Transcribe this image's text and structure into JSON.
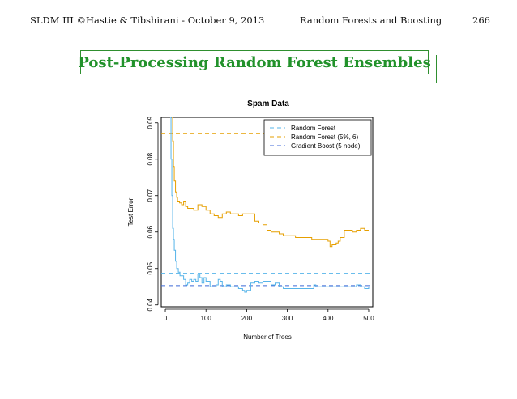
{
  "header": {
    "left": "SLDM III ©Hastie & Tibshirani - October 9, 2013",
    "center": "Random Forests and Boosting",
    "page": "266"
  },
  "slide": {
    "title": "Post-Processing Random Forest Ensembles"
  },
  "chart_data": {
    "type": "line",
    "title": "Spam Data",
    "xlabel": "Number of Trees",
    "ylabel": "Test Error",
    "xlim": [
      -10,
      510
    ],
    "ylim": [
      0.0395,
      0.0915
    ],
    "xticks": [
      0,
      100,
      200,
      300,
      400,
      500
    ],
    "xtick_labels": [
      "0",
      "100",
      "200",
      "300",
      "400",
      "500"
    ],
    "yticks": [
      0.04,
      0.05,
      0.06,
      0.07,
      0.08,
      0.09
    ],
    "ytick_labels": [
      "0.04",
      "0.05",
      "0.06",
      "0.07",
      "0.08",
      "0.09"
    ],
    "grid": false,
    "legend_position": "top-right",
    "legend": [
      {
        "label": "Random Forest",
        "color": "#56b4e9"
      },
      {
        "label": "Random Forest (5%, 6)",
        "color": "#e69f00"
      },
      {
        "label": "Gradient Boost (5 node)",
        "color": "#3f6ad8"
      }
    ],
    "reference_lines": [
      {
        "name": "Random Forest",
        "y": 0.0487,
        "color": "#56b4e9"
      },
      {
        "name": "Random Forest (5%, 6)",
        "y": 0.0871,
        "color": "#e69f00"
      },
      {
        "name": "Gradient Boost (5 node)",
        "y": 0.0453,
        "color": "#3f6ad8"
      }
    ],
    "series": [
      {
        "name": "Random Forest",
        "color": "#56b4e9",
        "x": [
          12,
          14,
          16,
          18,
          20,
          22,
          25,
          28,
          32,
          36,
          40,
          45,
          50,
          55,
          60,
          65,
          70,
          75,
          80,
          85,
          90,
          95,
          100,
          110,
          120,
          125,
          130,
          135,
          140,
          150,
          160,
          170,
          180,
          190,
          195,
          200,
          210,
          220,
          230,
          240,
          250,
          260,
          270,
          280,
          290,
          300,
          320,
          340,
          360,
          365,
          370,
          380,
          400,
          420,
          440,
          460,
          470,
          480,
          490,
          500
        ],
        "y": [
          0.0915,
          0.08,
          0.07,
          0.061,
          0.058,
          0.055,
          0.052,
          0.05,
          0.049,
          0.048,
          0.048,
          0.047,
          0.0455,
          0.046,
          0.047,
          0.0465,
          0.047,
          0.0465,
          0.0485,
          0.0475,
          0.046,
          0.0475,
          0.0465,
          0.045,
          0.045,
          0.0455,
          0.047,
          0.0465,
          0.045,
          0.0455,
          0.045,
          0.045,
          0.0445,
          0.044,
          0.0435,
          0.044,
          0.046,
          0.0465,
          0.046,
          0.0465,
          0.0465,
          0.0455,
          0.046,
          0.045,
          0.0445,
          0.0445,
          0.0445,
          0.0445,
          0.0445,
          0.0455,
          0.045,
          0.045,
          0.045,
          0.045,
          0.045,
          0.045,
          0.0455,
          0.045,
          0.0445,
          0.045
        ]
      },
      {
        "name": "Random Forest (5%, 6)",
        "color": "#e69f00",
        "x": [
          16,
          18,
          20,
          22,
          25,
          28,
          30,
          35,
          40,
          45,
          50,
          55,
          60,
          70,
          80,
          90,
          100,
          110,
          120,
          130,
          140,
          150,
          160,
          170,
          180,
          190,
          200,
          210,
          220,
          230,
          240,
          250,
          260,
          270,
          280,
          290,
          300,
          310,
          320,
          330,
          340,
          350,
          360,
          370,
          380,
          390,
          400,
          405,
          410,
          420,
          425,
          430,
          440,
          450,
          460,
          470,
          480,
          490,
          500
        ],
        "y": [
          0.0915,
          0.085,
          0.078,
          0.074,
          0.071,
          0.0695,
          0.0685,
          0.068,
          0.0675,
          0.0685,
          0.067,
          0.0665,
          0.0665,
          0.066,
          0.0675,
          0.067,
          0.066,
          0.065,
          0.0645,
          0.064,
          0.065,
          0.0655,
          0.065,
          0.065,
          0.0645,
          0.065,
          0.065,
          0.065,
          0.063,
          0.0625,
          0.062,
          0.0605,
          0.06,
          0.06,
          0.0595,
          0.059,
          0.059,
          0.059,
          0.0585,
          0.0585,
          0.0585,
          0.0585,
          0.058,
          0.058,
          0.058,
          0.058,
          0.0575,
          0.056,
          0.0565,
          0.057,
          0.0575,
          0.0585,
          0.0605,
          0.0605,
          0.06,
          0.0605,
          0.061,
          0.0605,
          0.0605
        ]
      }
    ]
  }
}
